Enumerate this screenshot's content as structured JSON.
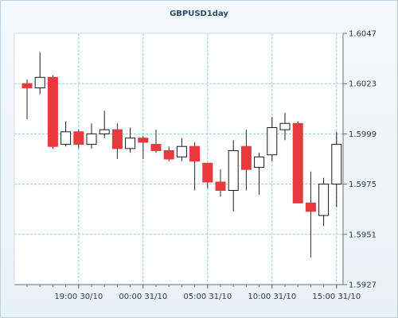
{
  "chart_data": {
    "type": "candlestick",
    "title": "GBPUSD1day",
    "xlabel": "",
    "ylabel": "",
    "ylim": [
      1.5927,
      1.6047
    ],
    "y_ticks": [
      "1.6047",
      "1.6023",
      "1.5999",
      "1.5975",
      "1.5951",
      "1.5927"
    ],
    "x_ticks": [
      {
        "label": "19:00 30/10",
        "index": 4.0
      },
      {
        "label": "00:00 31/10",
        "index": 9.0
      },
      {
        "label": "05:00 31/10",
        "index": 14.0
      },
      {
        "label": "10:00 31/10",
        "index": 19.0
      },
      {
        "label": "15:00 31/10",
        "index": 24.0
      }
    ],
    "grid": true,
    "up_color": "#ffffff",
    "down_color": "#e8393f",
    "candles": [
      {
        "open": 1.6023,
        "high": 1.6025,
        "low": 1.6006,
        "close": 1.6021
      },
      {
        "open": 1.6021,
        "high": 1.6038,
        "low": 1.6018,
        "close": 1.6026
      },
      {
        "open": 1.6026,
        "high": 1.6027,
        "low": 1.5992,
        "close": 1.5993
      },
      {
        "open": 1.5994,
        "high": 1.6005,
        "low": 1.5993,
        "close": 1.6
      },
      {
        "open": 1.6,
        "high": 1.6001,
        "low": 1.5992,
        "close": 1.5994
      },
      {
        "open": 1.5994,
        "high": 1.6004,
        "low": 1.5992,
        "close": 1.5999
      },
      {
        "open": 1.5999,
        "high": 1.601,
        "low": 1.5997,
        "close": 1.6001
      },
      {
        "open": 1.6001,
        "high": 1.6004,
        "low": 1.5987,
        "close": 1.5992
      },
      {
        "open": 1.5992,
        "high": 1.6002,
        "low": 1.599,
        "close": 1.5997
      },
      {
        "open": 1.5997,
        "high": 1.5998,
        "low": 1.5987,
        "close": 1.5995
      },
      {
        "open": 1.5994,
        "high": 1.6001,
        "low": 1.599,
        "close": 1.5991
      },
      {
        "open": 1.5991,
        "high": 1.5993,
        "low": 1.5986,
        "close": 1.5987
      },
      {
        "open": 1.5988,
        "high": 1.5997,
        "low": 1.5986,
        "close": 1.5993
      },
      {
        "open": 1.5993,
        "high": 1.5995,
        "low": 1.5972,
        "close": 1.5986
      },
      {
        "open": 1.5985,
        "high": 1.5985,
        "low": 1.5973,
        "close": 1.5976
      },
      {
        "open": 1.5976,
        "high": 1.5982,
        "low": 1.5969,
        "close": 1.5972
      },
      {
        "open": 1.5972,
        "high": 1.5996,
        "low": 1.5962,
        "close": 1.5991
      },
      {
        "open": 1.5993,
        "high": 1.6001,
        "low": 1.5972,
        "close": 1.5982
      },
      {
        "open": 1.5983,
        "high": 1.599,
        "low": 1.597,
        "close": 1.5988
      },
      {
        "open": 1.5989,
        "high": 1.6007,
        "low": 1.5986,
        "close": 1.6002
      },
      {
        "open": 1.6001,
        "high": 1.6009,
        "low": 1.5996,
        "close": 1.6004
      },
      {
        "open": 1.6004,
        "high": 1.6005,
        "low": 1.5966,
        "close": 1.5966
      },
      {
        "open": 1.5966,
        "high": 1.5981,
        "low": 1.594,
        "close": 1.5962
      },
      {
        "open": 1.596,
        "high": 1.5978,
        "low": 1.5955,
        "close": 1.5975
      },
      {
        "open": 1.5975,
        "high": 1.6,
        "low": 1.5964,
        "close": 1.5994
      }
    ]
  }
}
